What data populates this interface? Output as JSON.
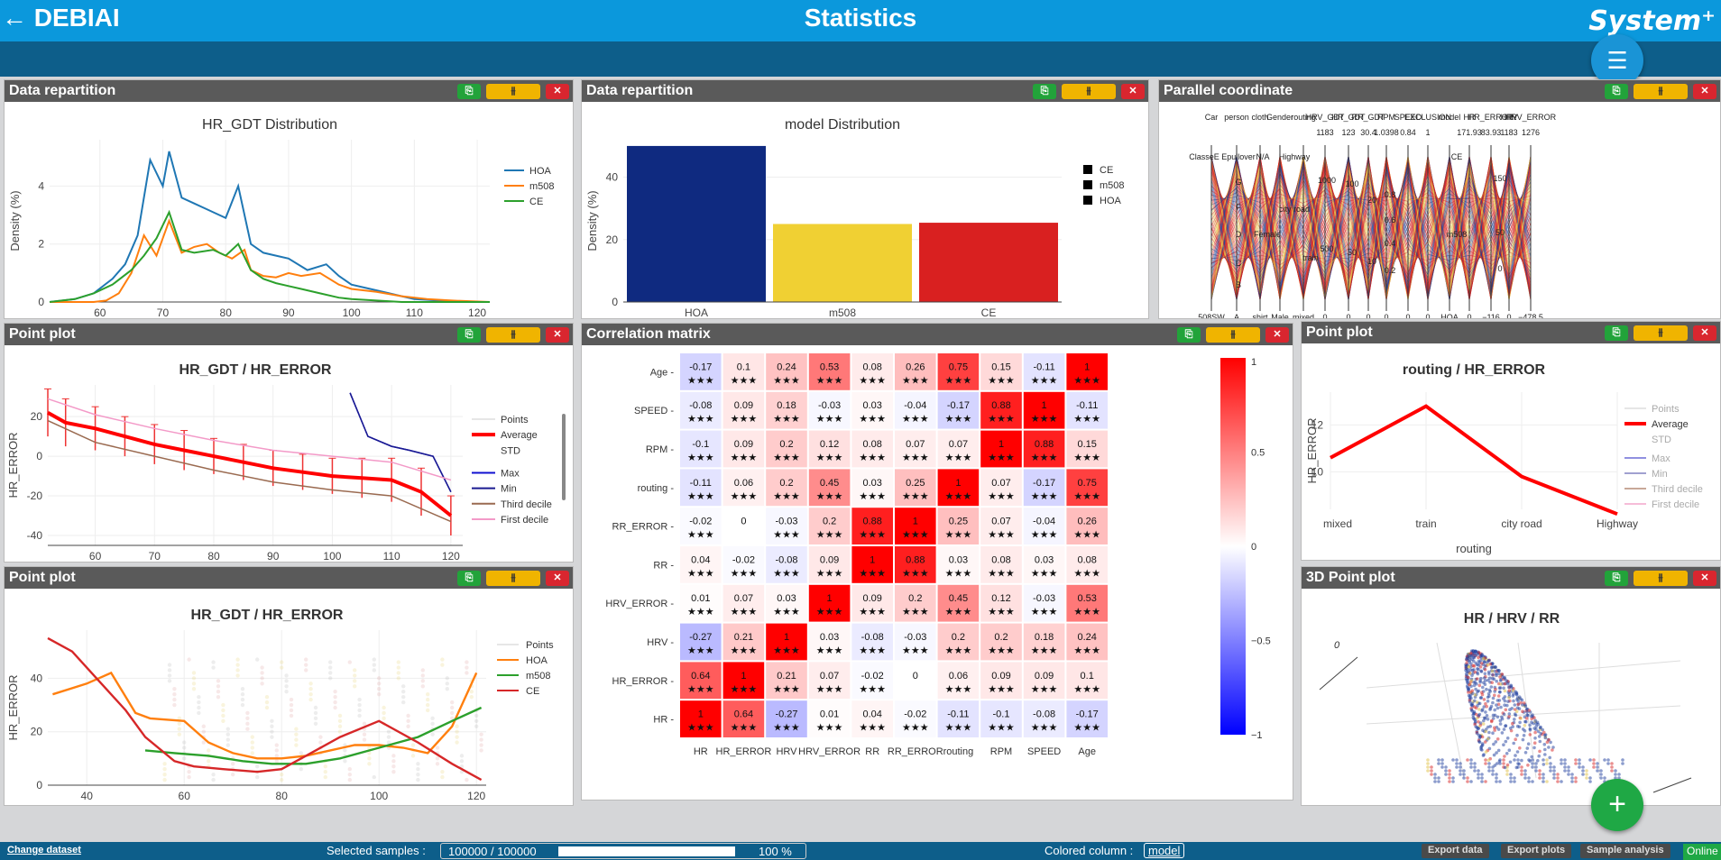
{
  "header": {
    "back_label": "← DEBIAI",
    "title": "Statistics",
    "logo": "System⁺"
  },
  "colors": {
    "hoa": "#1f77b4",
    "m508": "#ff7f0e",
    "ce": "#2ca02c",
    "bar_hoa": "#0f2a80",
    "bar_m508": "#f0d033",
    "bar_ce": "#d92020",
    "cm_red": "#ff0000",
    "cm_blue": "#0000ff"
  },
  "widget_buttons": {
    "copy": "⎘",
    "settings": "⫵",
    "close": "✕"
  },
  "w1": {
    "header": "Data repartition",
    "chart_data": {
      "type": "line",
      "title": "HR_GDT Distribution",
      "xlabel": "HR_GDT",
      "ylabel": "Density (%)",
      "xlim": [
        52,
        122
      ],
      "ylim": [
        0,
        5.6
      ],
      "xticks": [
        60,
        70,
        80,
        90,
        100,
        110,
        120
      ],
      "yticks": [
        0,
        2,
        4
      ],
      "series": [
        {
          "name": "HOA",
          "x": [
            52,
            56,
            59,
            62,
            64,
            66,
            68,
            70,
            71,
            73,
            75,
            77,
            78,
            80,
            82,
            84,
            86,
            88,
            90,
            93,
            96,
            98,
            100,
            104,
            106,
            108,
            110,
            114,
            118,
            122
          ],
          "y": [
            0,
            0.1,
            0.3,
            0.8,
            1.3,
            2.3,
            4.9,
            4.0,
            5.2,
            3.6,
            3.4,
            3.2,
            3.1,
            2.9,
            4.0,
            2.0,
            1.7,
            1.6,
            1.5,
            1.1,
            1.3,
            0.9,
            0.6,
            0.4,
            0.3,
            0.2,
            0.1,
            0.05,
            0,
            0
          ]
        },
        {
          "name": "m508",
          "x": [
            52,
            56,
            59,
            61,
            63,
            65,
            67,
            69,
            71,
            73,
            75,
            77,
            79,
            81,
            83,
            84,
            86,
            88,
            90,
            92,
            95,
            98,
            100,
            104,
            108,
            112,
            116,
            122
          ],
          "y": [
            0,
            0,
            0,
            0.05,
            0.3,
            1.0,
            2.3,
            1.6,
            2.8,
            1.7,
            1.9,
            2.0,
            1.7,
            1.5,
            1.8,
            1.1,
            0.9,
            0.85,
            1.0,
            0.9,
            1.0,
            0.6,
            0.45,
            0.35,
            0.2,
            0.1,
            0.05,
            0
          ]
        },
        {
          "name": "CE",
          "x": [
            52,
            56,
            59,
            62,
            65,
            67,
            69,
            71,
            73,
            75,
            78,
            80,
            82,
            84,
            86,
            88,
            90,
            92,
            95,
            98,
            100,
            104,
            108,
            112,
            116,
            122
          ],
          "y": [
            0,
            0.1,
            0.3,
            0.6,
            1.1,
            1.6,
            2.2,
            3.1,
            1.8,
            1.7,
            1.8,
            1.6,
            2.0,
            1.1,
            0.8,
            0.65,
            0.55,
            0.45,
            0.3,
            0.15,
            0.1,
            0.05,
            0,
            0,
            0,
            0
          ]
        }
      ]
    }
  },
  "w2": {
    "header": "Data repartition",
    "chart_data": {
      "type": "bar",
      "title": "model Distribution",
      "xlabel": "model",
      "ylabel": "Density (%)",
      "categories": [
        "HOA",
        "m508",
        "CE"
      ],
      "values": [
        50,
        25,
        25.4
      ],
      "ylim": [
        0,
        52
      ],
      "yticks": [
        0,
        20,
        40
      ],
      "legend": [
        "CE",
        "m508",
        "HOA"
      ]
    }
  },
  "w3": {
    "header": "Parallel coordinate",
    "axes": [
      "Car",
      "person",
      "cloth",
      "Gender",
      "routing",
      "HRV_GDT",
      "HR_GDT",
      "RR_GDT",
      "RPM",
      "SPEED",
      "EXCLUSION",
      "model",
      "HR",
      "HR_ERROR",
      "HRV",
      "HRV_ERROR"
    ],
    "top_vals": [
      "",
      "",
      "",
      "",
      "",
      "1183",
      "123",
      "30.4",
      "1.0398",
      "0.84",
      "1",
      "",
      "171.93",
      "83.93",
      "1183",
      "1276"
    ],
    "bottom_vals": [
      "508SW",
      "A",
      "shirt",
      "Male",
      "mixed",
      "0",
      "0",
      "0",
      "0",
      "0",
      "0",
      "HOA",
      "0",
      "−116",
      "0",
      "−478.5"
    ],
    "labels": [
      {
        "t": "ClasseE"
      },
      {
        "t": "Epullover"
      },
      {
        "t": "N/A"
      },
      {
        "t": "Highway"
      },
      {
        "t": "G"
      },
      {
        "t": "F"
      },
      {
        "t": "city road"
      },
      {
        "t": "Female"
      },
      {
        "t": "D"
      },
      {
        "t": "train"
      },
      {
        "t": "C"
      },
      {
        "t": "B"
      },
      {
        "t": "CE"
      },
      {
        "t": "m508"
      },
      {
        "t": "1000"
      },
      {
        "t": "500"
      },
      {
        "t": "100"
      },
      {
        "t": "50"
      },
      {
        "t": "20"
      },
      {
        "t": "10"
      },
      {
        "t": "0.8"
      },
      {
        "t": "0.6"
      },
      {
        "t": "0.4"
      },
      {
        "t": "0.2"
      },
      {
        "t": "150"
      },
      {
        "t": "50"
      },
      {
        "t": "0"
      }
    ]
  },
  "w4": {
    "header": "Point plot",
    "chart_data": {
      "type": "line",
      "title": "HR_GDT / HR_ERROR",
      "xlabel": "HR_GDT",
      "ylabel": "HR_ERROR",
      "xlim": [
        52,
        122
      ],
      "ylim": [
        -45,
        36
      ],
      "xticks": [
        60,
        70,
        80,
        90,
        100,
        110,
        120
      ],
      "yticks": [
        -40,
        -20,
        0,
        20
      ],
      "legend": [
        "Points",
        "Average",
        "STD",
        "Max",
        "Min",
        "Third decile",
        "First decile"
      ],
      "series": [
        {
          "name": "Average",
          "x": [
            52,
            55,
            60,
            65,
            70,
            75,
            80,
            85,
            90,
            95,
            100,
            105,
            110,
            115,
            120
          ],
          "y": [
            22,
            17,
            14,
            10,
            6,
            3,
            0,
            -3,
            -6,
            -8,
            -10,
            -11,
            -12,
            -18,
            -30
          ],
          "std": [
            12,
            12,
            11,
            10,
            10,
            10,
            9,
            9,
            9,
            9,
            9,
            10,
            11,
            12,
            10
          ]
        },
        {
          "name": "Max",
          "x": [
            103,
            106,
            110,
            113,
            117,
            120
          ],
          "y": [
            32,
            10,
            5,
            3,
            0,
            -18
          ]
        },
        {
          "name": "Min",
          "x": [
            103,
            106,
            110,
            113,
            117,
            120
          ],
          "y": [
            32,
            10,
            5,
            3,
            0,
            -18
          ]
        },
        {
          "name": "Third decile",
          "x": [
            52,
            60,
            70,
            80,
            90,
            100,
            110,
            120
          ],
          "y": [
            18,
            7,
            0,
            -7,
            -13,
            -17,
            -20,
            -33
          ]
        },
        {
          "name": "First decile",
          "x": [
            52,
            60,
            70,
            80,
            90,
            100,
            110,
            120
          ],
          "y": [
            29,
            21,
            14,
            8,
            3,
            0,
            -3,
            -12
          ]
        }
      ]
    }
  },
  "w5": {
    "header": "Point plot",
    "chart_data": {
      "type": "line",
      "title": "HR_GDT / HR_ERROR",
      "xlabel": "HR_GDT",
      "ylabel": "HR_ERROR",
      "xlim": [
        32,
        122
      ],
      "ylim": [
        0,
        58
      ],
      "xticks": [
        40,
        60,
        80,
        100,
        120
      ],
      "yticks": [
        0,
        20,
        40
      ],
      "legend": [
        "Points",
        "HOA",
        "m508",
        "CE"
      ],
      "series": [
        {
          "name": "HOA",
          "x": [
            33,
            40,
            45,
            50,
            53,
            60,
            65,
            70,
            75,
            80,
            85,
            90,
            95,
            100,
            105,
            110,
            115,
            120
          ],
          "y": [
            34,
            38,
            42,
            27,
            25,
            24,
            16,
            12,
            10,
            10,
            11,
            13,
            15,
            15,
            14,
            12,
            22,
            42
          ]
        },
        {
          "name": "m508",
          "x": [
            52,
            58,
            65,
            72,
            78,
            85,
            92,
            100,
            108,
            115,
            121
          ],
          "y": [
            13,
            12,
            11,
            9,
            8,
            8,
            10,
            14,
            18,
            24,
            29
          ]
        },
        {
          "name": "CE",
          "x": [
            32,
            37,
            42,
            48,
            52,
            58,
            62,
            68,
            75,
            80,
            85,
            92,
            100,
            108,
            115,
            121
          ],
          "y": [
            55,
            50,
            40,
            28,
            18,
            9,
            7,
            6,
            5,
            6,
            11,
            18,
            24,
            16,
            8,
            2
          ]
        }
      ]
    }
  },
  "w6": {
    "header": "Correlation matrix",
    "cols": [
      "HR",
      "HR_ERROR",
      "HRV",
      "HRV_ERROR",
      "RR",
      "RR_ERROR",
      "routing",
      "RPM",
      "SPEED",
      "Age"
    ],
    "rows": [
      "Age",
      "SPEED",
      "RPM",
      "routing",
      "RR_ERROR",
      "RR",
      "HRV_ERROR",
      "HRV",
      "HR_ERROR",
      "HR"
    ],
    "stars": "★★★",
    "values": [
      [
        -0.17,
        0.1,
        0.24,
        0.53,
        0.08,
        0.26,
        0.75,
        0.15,
        -0.11,
        1
      ],
      [
        -0.08,
        0.09,
        0.18,
        -0.03,
        0.03,
        -0.04,
        -0.17,
        0.88,
        1,
        -0.11
      ],
      [
        -0.1,
        0.09,
        0.2,
        0.12,
        0.08,
        0.07,
        0.07,
        1,
        0.88,
        0.15
      ],
      [
        -0.11,
        0.06,
        0.2,
        0.45,
        0.03,
        0.25,
        1,
        0.07,
        -0.17,
        0.75
      ],
      [
        -0.02,
        0,
        -0.03,
        0.2,
        0.88,
        1,
        0.25,
        0.07,
        -0.04,
        0.26
      ],
      [
        0.04,
        -0.02,
        -0.08,
        0.09,
        1,
        0.88,
        0.03,
        0.08,
        0.03,
        0.08
      ],
      [
        0.01,
        0.07,
        0.03,
        1,
        0.09,
        0.2,
        0.45,
        0.12,
        -0.03,
        0.53
      ],
      [
        -0.27,
        0.21,
        1,
        0.03,
        -0.08,
        -0.03,
        0.2,
        0.2,
        0.18,
        0.24
      ],
      [
        0.64,
        1,
        0.21,
        0.07,
        -0.02,
        0,
        0.06,
        0.09,
        0.09,
        0.1
      ],
      [
        1,
        0.64,
        -0.27,
        0.01,
        0.04,
        -0.02,
        -0.11,
        -0.1,
        -0.08,
        -0.17
      ]
    ],
    "colorbar_ticks": [
      "1",
      "0.5",
      "0",
      "−0.5",
      "−1"
    ]
  },
  "w7": {
    "header": "Point plot",
    "chart_data": {
      "type": "line",
      "title": "routing / HR_ERROR",
      "xlabel": "routing",
      "ylabel": "HR_ERROR",
      "categories": [
        "mixed",
        "train",
        "city road",
        "Highway"
      ],
      "values": [
        10.6,
        12.8,
        9.8,
        8.2
      ],
      "ylim": [
        8.4,
        13.4
      ],
      "yticks": [
        10,
        12
      ],
      "legend": [
        "Points",
        "Average",
        "STD",
        "Max",
        "Min",
        "Third decile",
        "First decile"
      ]
    }
  },
  "w8": {
    "header": "3D Point plot",
    "title": "HR / HRV / RR",
    "axis_label": "0"
  },
  "footer": {
    "change_dataset": "Change dataset",
    "selected_label": "Selected samples :",
    "selected_value": "100000 / 100000",
    "progress": 1.0,
    "percent": "100 %",
    "colored_label": "Colored column :",
    "colored_value": "model",
    "export_data": "Export data",
    "export_plots": "Export plots",
    "sample_analysis": "Sample analysis",
    "online": "Online"
  }
}
